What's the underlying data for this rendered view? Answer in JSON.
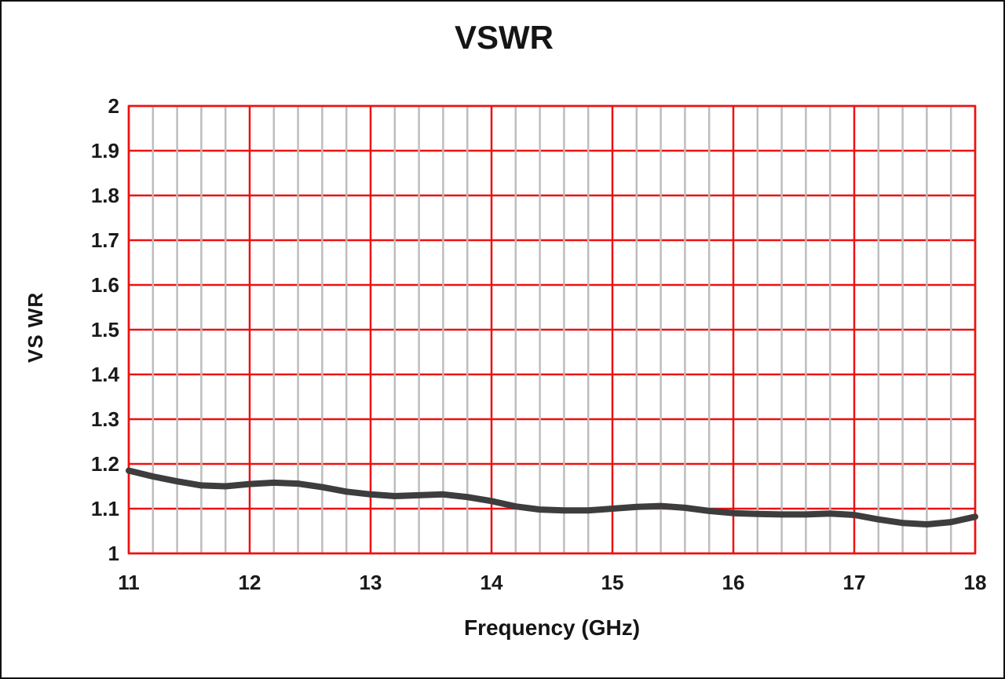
{
  "title": "VSWR",
  "chart_data": {
    "type": "line",
    "title": "VSWR",
    "xlabel": "Frequency (GHz)",
    "ylabel": "VS WR",
    "xlim": [
      11,
      18
    ],
    "ylim": [
      1,
      2
    ],
    "x_major_step": 1,
    "x_minor_step": 0.2,
    "y_major_step": 0.1,
    "x_tick_labels": [
      "11",
      "12",
      "13",
      "14",
      "15",
      "16",
      "17",
      "18"
    ],
    "y_tick_labels": [
      "1",
      "1.1",
      "1.2",
      "1.3",
      "1.4",
      "1.5",
      "1.6",
      "1.7",
      "1.8",
      "1.9",
      "2"
    ],
    "grid": {
      "major_color": "#ee1111",
      "minor_color": "#bdbdbd",
      "major_width": 2.5,
      "minor_width": 2.5,
      "horizontal_minor": false
    },
    "legend": "none",
    "series": [
      {
        "name": "VSWR",
        "color": "#3d3d3d",
        "line_width": 8,
        "x": [
          11.0,
          11.2,
          11.4,
          11.6,
          11.8,
          12.0,
          12.2,
          12.4,
          12.6,
          12.8,
          13.0,
          13.2,
          13.4,
          13.6,
          13.8,
          14.0,
          14.2,
          14.4,
          14.6,
          14.8,
          15.0,
          15.2,
          15.4,
          15.6,
          15.8,
          16.0,
          16.2,
          16.4,
          16.6,
          16.8,
          17.0,
          17.2,
          17.4,
          17.6,
          17.8,
          18.0
        ],
        "values": [
          1.185,
          1.172,
          1.161,
          1.152,
          1.15,
          1.155,
          1.158,
          1.156,
          1.148,
          1.138,
          1.132,
          1.128,
          1.13,
          1.132,
          1.126,
          1.117,
          1.105,
          1.098,
          1.096,
          1.096,
          1.1,
          1.104,
          1.106,
          1.102,
          1.095,
          1.09,
          1.088,
          1.087,
          1.087,
          1.089,
          1.086,
          1.076,
          1.068,
          1.065,
          1.07,
          1.082
        ]
      }
    ]
  }
}
